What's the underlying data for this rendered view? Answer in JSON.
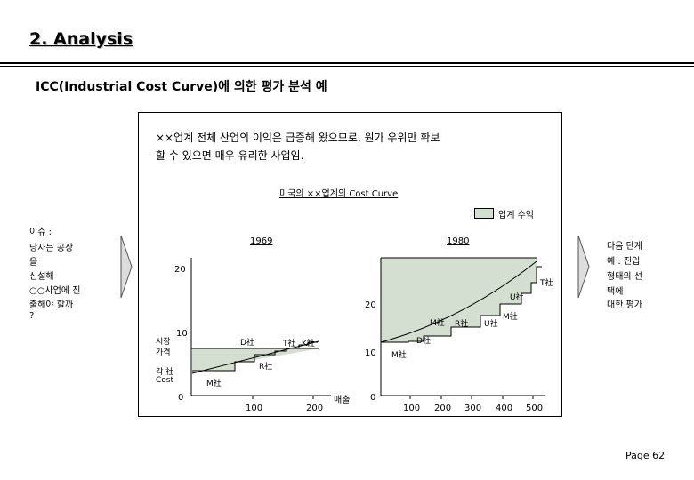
{
  "header": {
    "title": "2. Analysis",
    "subtitle": "ICC(Industrial Cost Curve)에 의한 평가 분석 예"
  },
  "summary": {
    "line1": "××업계 전체 산업의 이익은 급증해 왔으므로, 원가 우위만 확보",
    "line2": "할 수 있으면 매우 유리한 사업임."
  },
  "chart_title": "미국의 ××업계의 Cost Curve",
  "legend": {
    "label": "업계 수익",
    "color": "#d5dfd1"
  },
  "left_note": [
    "이슈 :",
    "당사는 공장",
    "을",
    "신설해",
    "○○사업에 진",
    "출해야 할까",
    "?"
  ],
  "right_note": [
    "다음 단계",
    "예 : 진입",
    "형태의 선",
    "택에",
    "대한 평가"
  ],
  "chart_left": {
    "year": "1969",
    "y_label_1": "시장",
    "y_label_2": "가격",
    "cost_label_1": "각 社",
    "cost_label_2": "Cost",
    "sales_label": "매출",
    "y_ticks": [
      "0",
      "10",
      "20"
    ],
    "x_ticks": [
      "100",
      "200"
    ],
    "companies": [
      "D社",
      "T社",
      "K社",
      "R社",
      "M社"
    ]
  },
  "chart_right": {
    "year": "1980",
    "y_ticks": [
      "0",
      "10",
      "20"
    ],
    "x_ticks": [
      "100",
      "200",
      "300",
      "400",
      "500"
    ],
    "companies": [
      "T社",
      "U社",
      "M社",
      "M社",
      "R社",
      "U社",
      "D社",
      "M社"
    ]
  },
  "footer": {
    "page": "Page 62"
  }
}
